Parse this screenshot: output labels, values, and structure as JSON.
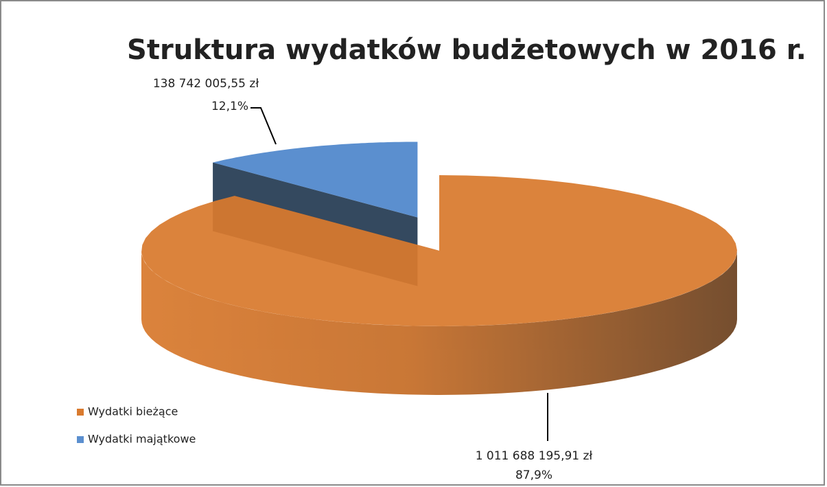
{
  "chart_data": {
    "type": "pie",
    "title": "Struktura wydatków budżetowych w 2016 r.",
    "categories": [
      "Wydatki bieżące",
      "Wydatki majątkowe"
    ],
    "values": [
      1011688195.91,
      138742005.55
    ],
    "value_labels": [
      "1 011 688 195,91 zł",
      "138 742 005,55 zł"
    ],
    "percentages": [
      87.9,
      12.1
    ],
    "percentage_labels": [
      "87,9%",
      "12,1%"
    ],
    "colors": [
      "#d97a2e",
      "#5b8fcf"
    ],
    "legend": "left"
  }
}
